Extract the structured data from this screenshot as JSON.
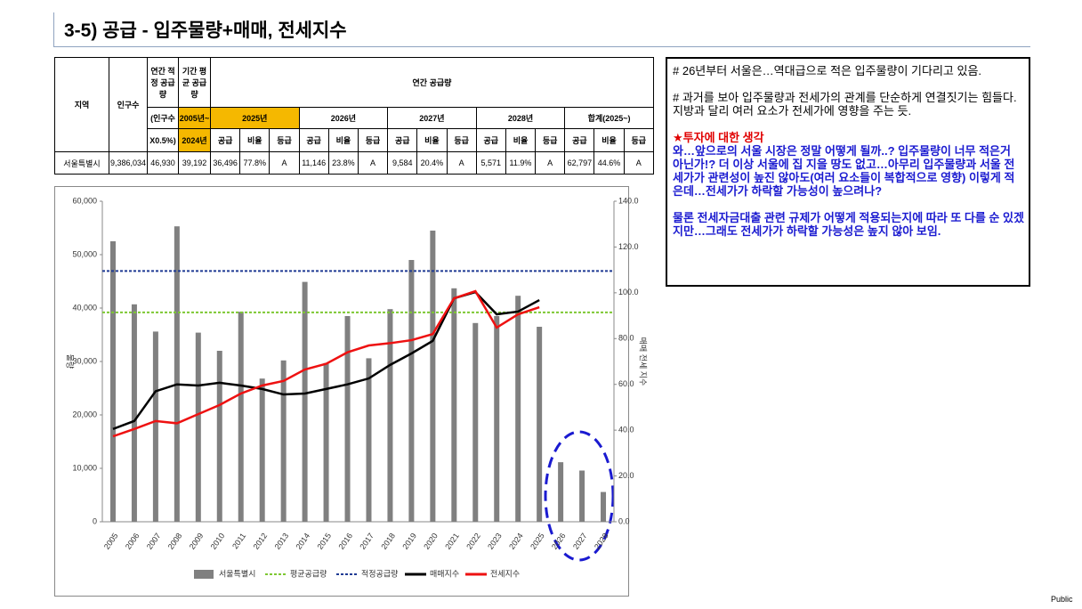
{
  "header": {
    "title": "3-5) 공급 - 입주물량+매매, 전세지수"
  },
  "footer": "Public",
  "table": {
    "rows": [
      [
        "지역",
        "인구수",
        "연간 적정 공급량",
        "기간 평균 공급량",
        "연간 공급량"
      ],
      [
        "(인구수",
        "2005년~",
        "2025년",
        "2026년",
        "2027년",
        "2028년",
        "합계(2025~)"
      ],
      [
        "X0.5%)",
        "2024년",
        "공급",
        "비율",
        "등급",
        "공급",
        "비율",
        "등급",
        "공급",
        "비율",
        "등급",
        "공급",
        "비율",
        "등급",
        "공급",
        "비율",
        "등급"
      ],
      [
        "서울특별시",
        "9,386,034",
        "46,930",
        "39,192",
        "36,496",
        "77.8%",
        "A",
        "11,146",
        "23.8%",
        "A",
        "9,584",
        "20.4%",
        "A",
        "5,571",
        "11.9%",
        "A",
        "62,797",
        "44.6%",
        "A"
      ]
    ]
  },
  "notes": [
    "# 26년부터 서울은…역대급으로 적은 입주물량이 기다리고 있음.",
    "# 과거를 보아 입주물량과 전세가의 관계를 단순하게 연결짓기는 힘들다. 지방과 달리 여러 요소가 전세가에 영향을 주는 듯.",
    "★투자에 대한 생각",
    "와…앞으로의 서울 시장은 정말 어떻게 될까..? 입주물량이 너무 적은거 아닌가!? 더 이상 서울에 집 지을 땅도 없고…아무리 입주물량과 서울 전세가가 관련성이 높진 않아도(여러 요소들이 복합적으로 영향) 이렇게 적은데…전세가가 하락할 가능성이 높으려나?",
    "물론 전세자금대출 관련 규제가 어떻게 적용되는지에 따라 또 다를 순 있겠지만…그래도 전세가가 하락할 가능성은 높지 않아 보임."
  ],
  "chart_data": {
    "type": "combo",
    "categories": [
      "2005",
      "2006",
      "2007",
      "2008",
      "2009",
      "2010",
      "2011",
      "2012",
      "2013",
      "2014",
      "2015",
      "2016",
      "2017",
      "2018",
      "2019",
      "2020",
      "2021",
      "2022",
      "2023",
      "2024",
      "2025",
      "2026",
      "2027",
      "2028"
    ],
    "series": [
      {
        "name": "서울특별시",
        "kind": "bar",
        "color": "#808080",
        "values": [
          52500,
          40700,
          35600,
          55300,
          35400,
          32000,
          39300,
          26800,
          30200,
          44900,
          29700,
          38500,
          30600,
          39800,
          49000,
          54500,
          43700,
          37200,
          38500,
          42300,
          36496,
          11146,
          9584,
          5571
        ]
      },
      {
        "name": "매매지수",
        "kind": "line",
        "axis": "y2",
        "color": "#000000",
        "values": [
          40.5,
          44,
          57,
          60,
          59.5,
          60.7,
          59.5,
          58,
          55.6,
          56,
          58,
          60,
          62.6,
          68.5,
          73.5,
          79,
          97.6,
          100.3,
          90.6,
          91.8,
          96.8,
          null,
          null,
          null
        ]
      },
      {
        "name": "전세지수",
        "kind": "line",
        "axis": "y2",
        "color": "#ee1111",
        "values": [
          37.3,
          40.5,
          44,
          43,
          47,
          51,
          56,
          59.5,
          61.5,
          66.5,
          69,
          74,
          77,
          78,
          79.3,
          82,
          97.6,
          100.7,
          84.8,
          90.6,
          93.7,
          null,
          null,
          null
        ]
      }
    ],
    "reference_lines": [
      {
        "name": "평균공급량",
        "color": "#7dc832",
        "value": 39192
      },
      {
        "name": "적정공급량",
        "color": "#1f3a93",
        "value": 46930
      }
    ],
    "ylabel": "물량",
    "y2label": "매매 전세 지수",
    "ylim": [
      0,
      60000
    ],
    "yticks": [
      0,
      {
        "value": 10000,
        "label": "10,000"
      },
      {
        "value": 20000,
        "label": "20,000"
      },
      {
        "value": 30000,
        "label": "30,000"
      },
      {
        "value": 40000,
        "label": "40,000"
      },
      {
        "value": 50000,
        "label": "50,000"
      },
      {
        "value": 60000,
        "label": "60,000"
      }
    ],
    "y2lim": [
      0,
      140
    ],
    "y2ticks": [
      {
        "value": 0,
        "label": "0.0"
      },
      {
        "value": 20,
        "label": "20.0"
      },
      {
        "value": 40,
        "label": "40.0"
      },
      {
        "value": 60,
        "label": "60.0"
      },
      {
        "value": 80,
        "label": "80.0"
      },
      {
        "value": 100,
        "label": "100.0"
      },
      {
        "value": 120,
        "label": "120.0"
      },
      {
        "value": 140,
        "label": "140.0"
      }
    ],
    "grid": false
  }
}
